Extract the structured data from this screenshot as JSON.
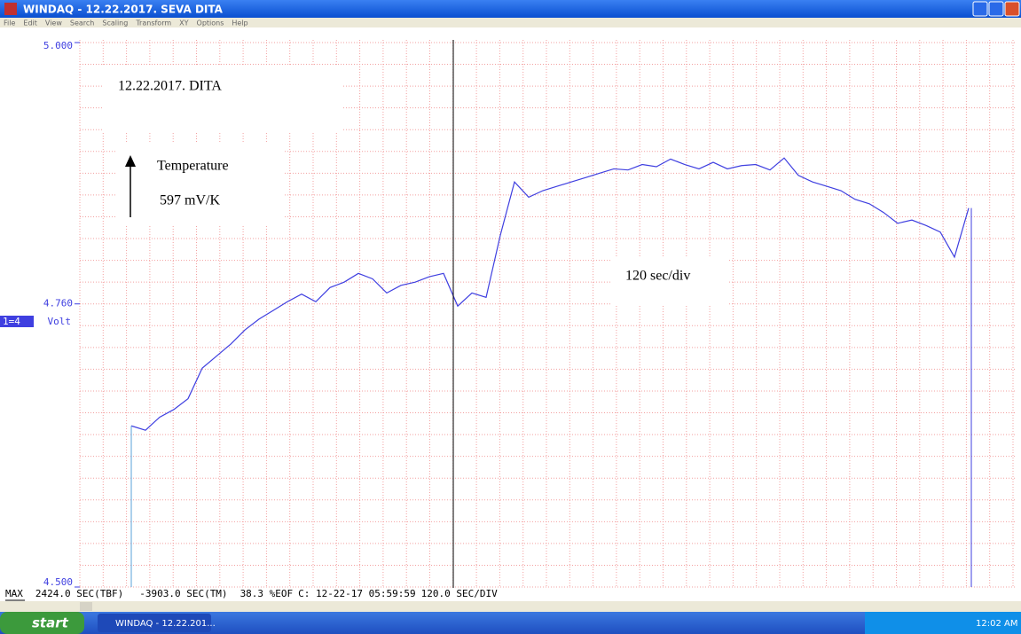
{
  "window": {
    "title": "WINDAQ - 12.22.2017. SEVA DITA",
    "menu": [
      "File",
      "Edit",
      "View",
      "Search",
      "Scaling",
      "Transform",
      "XY",
      "Options",
      "Help"
    ]
  },
  "chart_data": {
    "type": "line",
    "ylim": [
      4.5,
      5
    ],
    "yticks": [
      {
        "value": 4.5,
        "label": "4.500"
      },
      {
        "value": 4.76,
        "label": "4.760"
      },
      {
        "value": 5,
        "label": "5.000"
      }
    ],
    "y_unit": "Volt",
    "channel": "1=4",
    "annotations": [
      "12.22.2017. DITA",
      "Temperature",
      "597 mV/K",
      "120 sec/div"
    ],
    "series": [
      {
        "color": "#3f3fe0",
        "values": [
          4.648,
          4.644,
          4.656,
          4.663,
          4.673,
          4.701,
          4.712,
          4.723,
          4.736,
          4.746,
          4.754,
          4.762,
          4.769,
          4.762,
          4.775,
          4.78,
          4.788,
          4.783,
          4.77,
          4.777,
          4.78,
          4.785,
          4.788,
          4.758,
          4.77,
          4.766,
          4.823,
          4.872,
          4.858,
          4.864,
          4.868,
          4.872,
          4.876,
          4.88,
          4.884,
          4.883,
          4.888,
          4.886,
          4.893,
          4.888,
          4.884,
          4.89,
          4.884,
          4.887,
          4.888,
          4.883,
          4.894,
          4.878,
          4.872,
          4.868,
          4.864,
          4.856,
          4.852,
          4.844,
          4.834,
          4.837,
          4.832,
          4.826,
          4.803,
          4.848
        ]
      }
    ],
    "grid": true
  },
  "status": [
    "MAX",
    "2424.0 SEC(TBF)",
    "-3903.0 SEC(TM)",
    "38.3 %EOF",
    "C: 12-22-17 05:59:59",
    "120.0 SEC/DIV"
  ],
  "taskbar": {
    "start": "start",
    "task": "WINDAQ - 12.22.201...",
    "clock": "12:02 AM"
  }
}
